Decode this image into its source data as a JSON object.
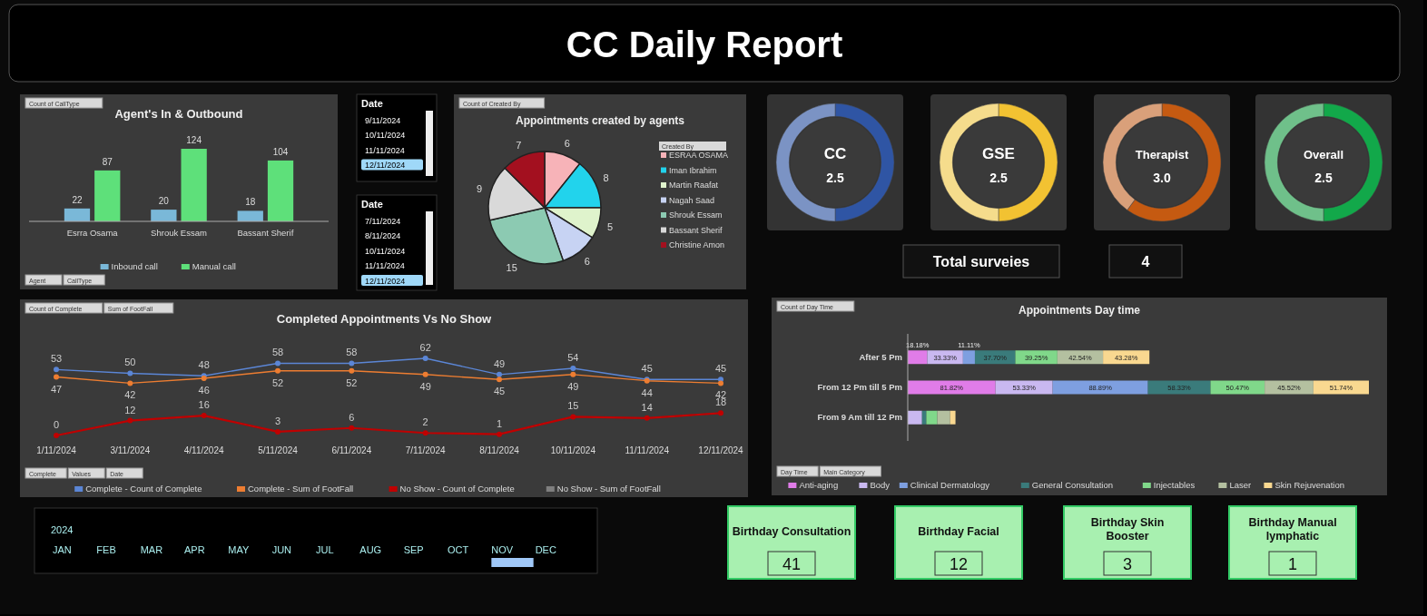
{
  "chart_data": [
    {
      "type": "other",
      "title": "CC Daily Report"
    },
    {
      "type": "bar",
      "title": "Agent's In & Outbound",
      "categories": [
        "Esrra Osama",
        "Shrouk Essam",
        "Bassant Sherif"
      ],
      "series": [
        {
          "name": "Inbound call",
          "color": "#7ab8d8",
          "values": [
            22,
            20,
            18
          ]
        },
        {
          "name": "Manual call",
          "color": "#5ee07a",
          "values": [
            87,
            124,
            104
          ]
        }
      ],
      "data_labels": true,
      "legend": "bottom",
      "annotations": [
        "Count of CallType",
        "Agent",
        "CallType"
      ]
    },
    {
      "type": "other",
      "title": "Date",
      "annotations": [
        "9/11/2024",
        "10/11/2024",
        "11/11/2024",
        "12/11/2024"
      ]
    },
    {
      "type": "other",
      "title": "Date",
      "annotations": [
        "7/11/2024",
        "8/11/2024",
        "10/11/2024",
        "11/11/2024",
        "12/11/2024"
      ]
    },
    {
      "type": "pie",
      "title": "Appointments created by agents",
      "categories": [
        "ESRAA OSAMA",
        "Iman Ibrahim",
        "Martin Raafat",
        "Nagah Saad",
        "Shrouk Essam",
        "Bassant Sherif",
        "Christine Amon"
      ],
      "values": [
        6,
        8,
        5,
        6,
        15,
        9,
        7
      ],
      "colors": [
        "#f7b3b8",
        "#22d3ec",
        "#dff3cc",
        "#c7d3f3",
        "#8ccab2",
        "#d9d9d9",
        "#a3101f"
      ],
      "data_labels": true,
      "legend": "right",
      "legend_title": "Created By",
      "annotations": [
        "Count of Created By"
      ]
    },
    {
      "type": "donut",
      "title": "CC",
      "categories": [
        null,
        null
      ],
      "values": [
        50,
        50
      ],
      "colors": [
        "#2f55a4",
        "#7b93c4"
      ],
      "annotations": [
        "2.5"
      ]
    },
    {
      "type": "donut",
      "title": "GSE",
      "categories": [
        null,
        null
      ],
      "values": [
        50,
        50
      ],
      "colors": [
        "#f2c232",
        "#f5dc8c"
      ],
      "annotations": [
        "2.5"
      ]
    },
    {
      "type": "donut",
      "title": "Therapist",
      "categories": [
        null,
        null
      ],
      "values": [
        60,
        40
      ],
      "colors": [
        "#c55a11",
        "#d9a07a"
      ],
      "annotations": [
        "3.0"
      ]
    },
    {
      "type": "donut",
      "title": "Overall",
      "categories": [
        null,
        null
      ],
      "values": [
        50,
        50
      ],
      "colors": [
        "#12a84a",
        "#6fc08a"
      ],
      "annotations": [
        "2.5"
      ]
    },
    {
      "type": "other",
      "title": "Total surveies",
      "annotations": [
        "4"
      ]
    },
    {
      "type": "line",
      "title": "Completed Appointments Vs No Show",
      "categories": [
        "1/11/2024",
        "3/11/2024",
        "4/11/2024",
        "5/11/2024",
        "6/11/2024",
        "7/11/2024",
        "8/11/2024",
        "10/11/2024",
        "11/11/2024",
        "12/11/2024"
      ],
      "series": [
        {
          "name": "Complete - Count of Complete",
          "color": "#5b86d6",
          "values": [
            53,
            50,
            48,
            58,
            58,
            62,
            49,
            54,
            45,
            45
          ]
        },
        {
          "name": "Complete - Sum of FootFall",
          "color": "#ed7d31",
          "values": [
            47,
            42,
            46,
            52,
            52,
            49,
            45,
            49,
            44,
            42
          ]
        },
        {
          "name": "No Show - Count of Complete",
          "color": "#c00000",
          "values": [
            0,
            12,
            16,
            3,
            6,
            2,
            1,
            15,
            14,
            18
          ]
        },
        {
          "name": "No Show - Sum of FootFall",
          "color": "#7f7f7f",
          "values": [
            null,
            null,
            null,
            null,
            null,
            null,
            null,
            null,
            null,
            null
          ]
        }
      ],
      "data_labels": true,
      "marker": "circle",
      "legend": "bottom",
      "annotations": [
        "Count of Complete",
        "Sum of FootFall",
        "Complete",
        "Values",
        "Date"
      ]
    },
    {
      "type": "bar",
      "orientation": "horizontal",
      "stacked": true,
      "title": "Appointments Day time",
      "categories": [
        "After 5 Pm",
        "From 12 Pm till 5 Pm",
        "From 9 Am till 12 Pm"
      ],
      "series": [
        {
          "name": "Anti-aging",
          "color": "#e07ce8",
          "values": [
            18.18,
            81.82,
            0
          ],
          "value_labels": [
            "18.18%",
            "81.82%",
            null
          ]
        },
        {
          "name": "Body",
          "color": "#c9b8f0",
          "values": [
            33.33,
            53.33,
            13.33
          ],
          "value_labels": [
            "33.33%",
            "53.33%",
            null
          ]
        },
        {
          "name": "Clinical Dermatology",
          "color": "#7e9fe0",
          "values": [
            11.11,
            88.89,
            0
          ],
          "value_labels": [
            "11.11%",
            "88.89%",
            null
          ]
        },
        {
          "name": "General Consultation",
          "color": "#3a7b7b",
          "values": [
            37.7,
            58.33,
            3.97
          ],
          "value_labels": [
            "37.70%",
            "58.33%",
            null
          ]
        },
        {
          "name": "Injectables",
          "color": "#80d88a",
          "values": [
            39.25,
            50.47,
            10.28
          ],
          "value_labels": [
            "39.25%",
            "50.47%",
            null
          ]
        },
        {
          "name": "Laser",
          "color": "#b4c0a0",
          "values": [
            42.54,
            45.52,
            11.94
          ],
          "value_labels": [
            "42.54%",
            "45.52%",
            null
          ]
        },
        {
          "name": "Skin Rejuvenation",
          "color": "#f9d890",
          "values": [
            43.28,
            51.74,
            4.98
          ],
          "value_labels": [
            "43.28%",
            "51.74%",
            null
          ]
        }
      ],
      "legend": "bottom",
      "annotations": [
        "Count of Day Time",
        "Day Time",
        "Main Category"
      ]
    },
    {
      "type": "other",
      "title": "2024",
      "annotations": [
        "JAN",
        "FEB",
        "MAR",
        "APR",
        "MAY",
        "JUN",
        "JUL",
        "AUG",
        "SEP",
        "OCT",
        "NOV",
        "DEC"
      ]
    },
    {
      "type": "other",
      "title": "Birthday Consultation",
      "annotations": [
        "41"
      ]
    },
    {
      "type": "other",
      "title": "Birthday Facial",
      "annotations": [
        "12"
      ]
    },
    {
      "type": "other",
      "title": "Birthday Skin Booster",
      "annotations": [
        "3"
      ]
    },
    {
      "type": "other",
      "title": "Birthday Manual lymphatic",
      "annotations": [
        "1"
      ]
    }
  ]
}
